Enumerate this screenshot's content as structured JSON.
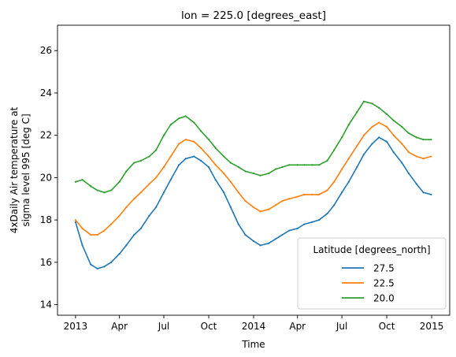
{
  "chart_data": {
    "type": "line",
    "title": "lon = 225.0 [degrees_east]",
    "xlabel": "Time",
    "ylabel_lines": [
      "4xDaily Air temperature at",
      "sigma level 995 [deg C]"
    ],
    "xlim": [
      "2012-11-25",
      "2015-02-07"
    ],
    "ylim": [
      13.5,
      27.2
    ],
    "x_ticks": [
      {
        "date": "2013-01-01",
        "label": "2013"
      },
      {
        "date": "2013-04-01",
        "label": "Apr"
      },
      {
        "date": "2013-07-01",
        "label": "Jul"
      },
      {
        "date": "2013-10-01",
        "label": "Oct"
      },
      {
        "date": "2014-01-01",
        "label": "2014"
      },
      {
        "date": "2014-04-01",
        "label": "Apr"
      },
      {
        "date": "2014-07-01",
        "label": "Jul"
      },
      {
        "date": "2014-10-01",
        "label": "Oct"
      },
      {
        "date": "2015-01-01",
        "label": "2015"
      }
    ],
    "y_ticks": [
      14,
      16,
      18,
      20,
      22,
      24,
      26
    ],
    "grid": false,
    "legend": {
      "title": "Latitude [degrees_north]",
      "position": "lower-right"
    },
    "series": [
      {
        "name": "27.5",
        "color": "#1f77b4",
        "points": [
          [
            "2013-01-01",
            17.9
          ],
          [
            "2013-01-15",
            16.8
          ],
          [
            "2013-02-01",
            15.9
          ],
          [
            "2013-02-15",
            15.7
          ],
          [
            "2013-03-01",
            15.8
          ],
          [
            "2013-03-15",
            16.0
          ],
          [
            "2013-04-01",
            16.4
          ],
          [
            "2013-04-15",
            16.8
          ],
          [
            "2013-05-01",
            17.3
          ],
          [
            "2013-05-15",
            17.6
          ],
          [
            "2013-06-01",
            18.2
          ],
          [
            "2013-06-15",
            18.6
          ],
          [
            "2013-07-01",
            19.3
          ],
          [
            "2013-07-15",
            19.9
          ],
          [
            "2013-08-01",
            20.6
          ],
          [
            "2013-08-15",
            20.9
          ],
          [
            "2013-09-01",
            21.0
          ],
          [
            "2013-09-15",
            20.8
          ],
          [
            "2013-10-01",
            20.5
          ],
          [
            "2013-10-15",
            19.9
          ],
          [
            "2013-11-01",
            19.3
          ],
          [
            "2013-11-15",
            18.6
          ],
          [
            "2013-12-01",
            17.8
          ],
          [
            "2013-12-15",
            17.3
          ],
          [
            "2014-01-01",
            17.0
          ],
          [
            "2014-01-15",
            16.8
          ],
          [
            "2014-02-01",
            16.9
          ],
          [
            "2014-02-15",
            17.1
          ],
          [
            "2014-03-01",
            17.3
          ],
          [
            "2014-03-15",
            17.5
          ],
          [
            "2014-04-01",
            17.6
          ],
          [
            "2014-04-15",
            17.8
          ],
          [
            "2014-05-01",
            17.9
          ],
          [
            "2014-05-15",
            18.0
          ],
          [
            "2014-06-01",
            18.3
          ],
          [
            "2014-06-15",
            18.7
          ],
          [
            "2014-07-01",
            19.3
          ],
          [
            "2014-07-15",
            19.8
          ],
          [
            "2014-08-01",
            20.5
          ],
          [
            "2014-08-15",
            21.1
          ],
          [
            "2014-09-01",
            21.6
          ],
          [
            "2014-09-15",
            21.9
          ],
          [
            "2014-10-01",
            21.7
          ],
          [
            "2014-10-15",
            21.2
          ],
          [
            "2014-11-01",
            20.7
          ],
          [
            "2014-11-15",
            20.2
          ],
          [
            "2014-12-01",
            19.7
          ],
          [
            "2014-12-15",
            19.3
          ],
          [
            "2014-12-31",
            19.2
          ]
        ]
      },
      {
        "name": "22.5",
        "color": "#ff7f0e",
        "points": [
          [
            "2013-01-01",
            18.0
          ],
          [
            "2013-01-15",
            17.6
          ],
          [
            "2013-02-01",
            17.3
          ],
          [
            "2013-02-15",
            17.3
          ],
          [
            "2013-03-01",
            17.5
          ],
          [
            "2013-03-15",
            17.8
          ],
          [
            "2013-04-01",
            18.2
          ],
          [
            "2013-04-15",
            18.6
          ],
          [
            "2013-05-01",
            19.0
          ],
          [
            "2013-05-15",
            19.3
          ],
          [
            "2013-06-01",
            19.7
          ],
          [
            "2013-06-15",
            20.0
          ],
          [
            "2013-07-01",
            20.5
          ],
          [
            "2013-07-15",
            21.0
          ],
          [
            "2013-08-01",
            21.6
          ],
          [
            "2013-08-15",
            21.8
          ],
          [
            "2013-09-01",
            21.7
          ],
          [
            "2013-09-15",
            21.4
          ],
          [
            "2013-10-01",
            21.0
          ],
          [
            "2013-10-15",
            20.6
          ],
          [
            "2013-11-01",
            20.2
          ],
          [
            "2013-11-15",
            19.8
          ],
          [
            "2013-12-01",
            19.3
          ],
          [
            "2013-12-15",
            18.9
          ],
          [
            "2014-01-01",
            18.6
          ],
          [
            "2014-01-15",
            18.4
          ],
          [
            "2014-02-01",
            18.5
          ],
          [
            "2014-02-15",
            18.7
          ],
          [
            "2014-03-01",
            18.9
          ],
          [
            "2014-03-15",
            19.0
          ],
          [
            "2014-04-01",
            19.1
          ],
          [
            "2014-04-15",
            19.2
          ],
          [
            "2014-05-01",
            19.2
          ],
          [
            "2014-05-15",
            19.2
          ],
          [
            "2014-06-01",
            19.4
          ],
          [
            "2014-06-15",
            19.8
          ],
          [
            "2014-07-01",
            20.4
          ],
          [
            "2014-07-15",
            20.9
          ],
          [
            "2014-08-01",
            21.5
          ],
          [
            "2014-08-15",
            22.0
          ],
          [
            "2014-09-01",
            22.4
          ],
          [
            "2014-09-15",
            22.6
          ],
          [
            "2014-10-01",
            22.4
          ],
          [
            "2014-10-15",
            22.0
          ],
          [
            "2014-11-01",
            21.6
          ],
          [
            "2014-11-15",
            21.2
          ],
          [
            "2014-12-01",
            21.0
          ],
          [
            "2014-12-15",
            20.9
          ],
          [
            "2014-12-31",
            21.0
          ]
        ]
      },
      {
        "name": "20.0",
        "color": "#2ca02c",
        "points": [
          [
            "2013-01-01",
            19.8
          ],
          [
            "2013-01-15",
            19.9
          ],
          [
            "2013-02-01",
            19.6
          ],
          [
            "2013-02-15",
            19.4
          ],
          [
            "2013-03-01",
            19.3
          ],
          [
            "2013-03-15",
            19.4
          ],
          [
            "2013-04-01",
            19.8
          ],
          [
            "2013-04-15",
            20.3
          ],
          [
            "2013-05-01",
            20.7
          ],
          [
            "2013-05-15",
            20.8
          ],
          [
            "2013-06-01",
            21.0
          ],
          [
            "2013-06-15",
            21.3
          ],
          [
            "2013-07-01",
            22.0
          ],
          [
            "2013-07-15",
            22.5
          ],
          [
            "2013-08-01",
            22.8
          ],
          [
            "2013-08-15",
            22.9
          ],
          [
            "2013-09-01",
            22.6
          ],
          [
            "2013-09-15",
            22.2
          ],
          [
            "2013-10-01",
            21.8
          ],
          [
            "2013-10-15",
            21.4
          ],
          [
            "2013-11-01",
            21.0
          ],
          [
            "2013-11-15",
            20.7
          ],
          [
            "2013-12-01",
            20.5
          ],
          [
            "2013-12-15",
            20.3
          ],
          [
            "2014-01-01",
            20.2
          ],
          [
            "2014-01-15",
            20.1
          ],
          [
            "2014-02-01",
            20.2
          ],
          [
            "2014-02-15",
            20.4
          ],
          [
            "2014-03-01",
            20.5
          ],
          [
            "2014-03-15",
            20.6
          ],
          [
            "2014-04-01",
            20.6
          ],
          [
            "2014-04-15",
            20.6
          ],
          [
            "2014-05-01",
            20.6
          ],
          [
            "2014-05-15",
            20.6
          ],
          [
            "2014-06-01",
            20.8
          ],
          [
            "2014-06-15",
            21.3
          ],
          [
            "2014-07-01",
            21.9
          ],
          [
            "2014-07-15",
            22.5
          ],
          [
            "2014-08-01",
            23.1
          ],
          [
            "2014-08-15",
            23.6
          ],
          [
            "2014-09-01",
            23.5
          ],
          [
            "2014-09-15",
            23.3
          ],
          [
            "2014-10-01",
            23.0
          ],
          [
            "2014-10-15",
            22.7
          ],
          [
            "2014-11-01",
            22.4
          ],
          [
            "2014-11-15",
            22.1
          ],
          [
            "2014-12-01",
            21.9
          ],
          [
            "2014-12-15",
            21.8
          ],
          [
            "2014-12-31",
            21.8
          ]
        ]
      }
    ]
  }
}
